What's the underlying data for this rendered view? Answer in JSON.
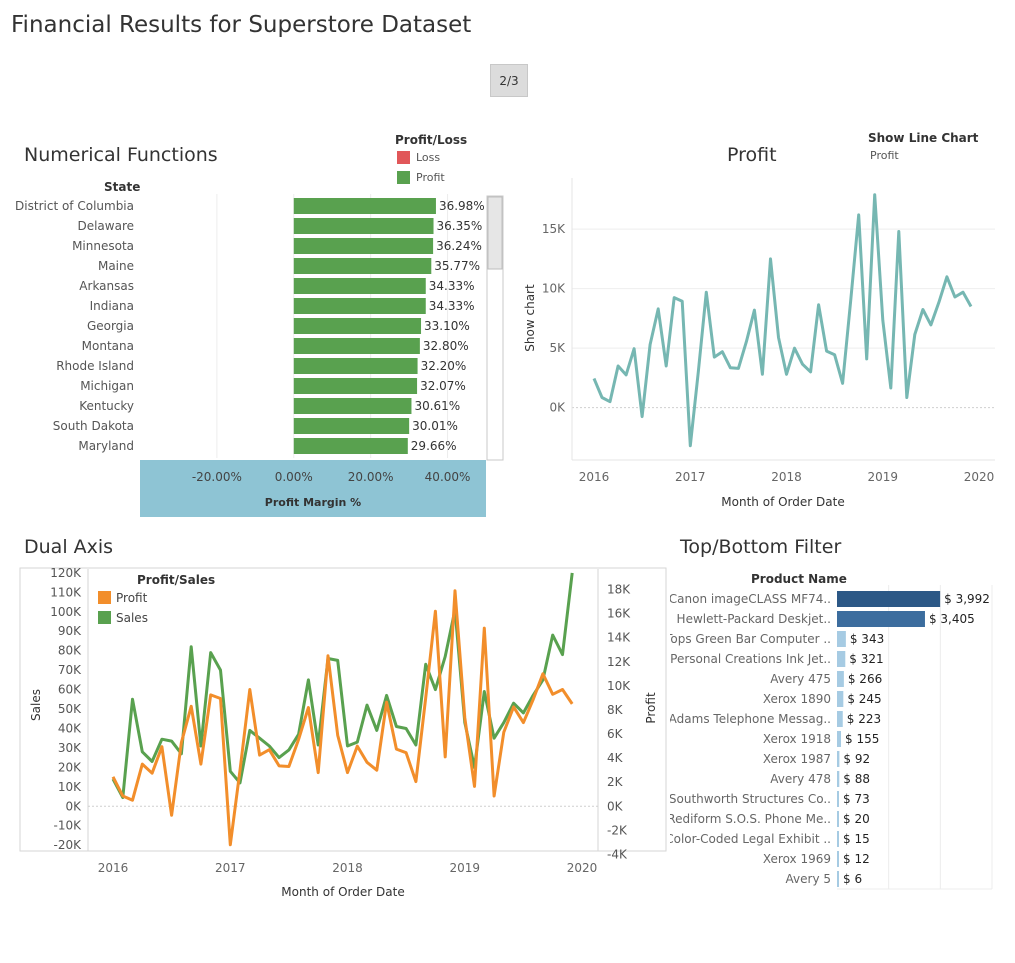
{
  "title": "Financial Results for Superstore Dataset",
  "page_indicator": "2/3",
  "numerical": {
    "title": "Numerical Functions",
    "legend_title": "Profit/Loss",
    "legend": [
      {
        "label": "Loss",
        "color": "#e15759"
      },
      {
        "label": "Profit",
        "color": "#59a14f"
      }
    ],
    "row_header": "State"
  },
  "profit_panel": {
    "title": "Profit",
    "param_label": "Show Line Chart",
    "param_value": "Profit"
  },
  "dual_panel": {
    "title": "Dual Axis",
    "legend_title": "Profit/Sales",
    "legend": [
      {
        "label": "Profit",
        "color": "#f28e2b"
      },
      {
        "label": "Sales",
        "color": "#59a14f"
      }
    ]
  },
  "topbottom_panel": {
    "title": "Top/Bottom Filter",
    "row_header": "Product Name"
  },
  "chart_data": [
    {
      "type": "bar",
      "orientation": "horizontal",
      "categories": [
        "District of Columbia",
        "Delaware",
        "Minnesota",
        "Maine",
        "Arkansas",
        "Indiana",
        "Georgia",
        "Montana",
        "Rhode Island",
        "Michigan",
        "Kentucky",
        "South Dakota",
        "Maryland"
      ],
      "values": [
        36.98,
        36.35,
        36.24,
        35.77,
        34.33,
        34.33,
        33.1,
        32.8,
        32.2,
        32.07,
        30.61,
        30.01,
        29.66
      ],
      "labels": [
        "36.98%",
        "36.35%",
        "36.24%",
        "35.77%",
        "34.33%",
        "34.33%",
        "33.10%",
        "32.80%",
        "32.20%",
        "32.07%",
        "30.61%",
        "30.01%",
        "29.66%"
      ],
      "xlabel": "Profit Margin %",
      "ylabel": "State",
      "xticks": [
        -20,
        0,
        20,
        40
      ],
      "xtick_labels": [
        "-20.00%",
        "0.00%",
        "20.00%",
        "40.00%"
      ],
      "xlim": [
        -40,
        50
      ],
      "color": "#59a14f"
    },
    {
      "type": "line",
      "title": "Profit",
      "xlabel": "Month of Order Date",
      "ylabel": "Show chart",
      "x": [
        "2016-01",
        "2016-02",
        "2016-03",
        "2016-04",
        "2016-05",
        "2016-06",
        "2016-07",
        "2016-08",
        "2016-09",
        "2016-10",
        "2016-11",
        "2016-12",
        "2017-01",
        "2017-02",
        "2017-03",
        "2017-04",
        "2017-05",
        "2017-06",
        "2017-07",
        "2017-08",
        "2017-09",
        "2017-10",
        "2017-11",
        "2017-12",
        "2018-01",
        "2018-02",
        "2018-03",
        "2018-04",
        "2018-05",
        "2018-06",
        "2018-07",
        "2018-08",
        "2018-09",
        "2018-10",
        "2018-11",
        "2018-12",
        "2019-01",
        "2019-02",
        "2019-03",
        "2019-04",
        "2019-05",
        "2019-06",
        "2019-07",
        "2019-08",
        "2019-09",
        "2019-10",
        "2019-11",
        "2019-12"
      ],
      "values": [
        2450,
        850,
        500,
        3500,
        2750,
        4950,
        -750,
        5300,
        8300,
        3500,
        9250,
        8950,
        -3200,
        3000,
        9700,
        4250,
        4700,
        3350,
        3300,
        5550,
        8200,
        2800,
        12500,
        5900,
        2800,
        5000,
        3650,
        3000,
        8650,
        4750,
        4450,
        2050,
        9000,
        16200,
        4100,
        17900,
        7350,
        1650,
        14800,
        850,
        6150,
        8250,
        6950,
        8850,
        11000,
        9300,
        9700,
        8500
      ],
      "yticks": [
        0,
        5000,
        10000,
        15000
      ],
      "ytick_labels": [
        "0K",
        "5K",
        "10K",
        "15K"
      ],
      "ylim": [
        -4400,
        19300
      ],
      "xticks": [
        "2016",
        "2017",
        "2018",
        "2019",
        "2020"
      ],
      "color": "#76b7b2"
    },
    {
      "type": "line",
      "dual_axis": true,
      "xlabel": "Month of Order Date",
      "ylabel_left": "Sales",
      "ylabel_right": "Profit",
      "x": [
        "2016-01",
        "2016-02",
        "2016-03",
        "2016-04",
        "2016-05",
        "2016-06",
        "2016-07",
        "2016-08",
        "2016-09",
        "2016-10",
        "2016-11",
        "2016-12",
        "2017-01",
        "2017-02",
        "2017-03",
        "2017-04",
        "2017-05",
        "2017-06",
        "2017-07",
        "2017-08",
        "2017-09",
        "2017-10",
        "2017-11",
        "2017-12",
        "2018-01",
        "2018-02",
        "2018-03",
        "2018-04",
        "2018-05",
        "2018-06",
        "2018-07",
        "2018-08",
        "2018-09",
        "2018-10",
        "2018-11",
        "2018-12",
        "2019-01",
        "2019-02",
        "2019-03",
        "2019-04",
        "2019-05",
        "2019-06",
        "2019-07",
        "2019-08",
        "2019-09",
        "2019-10",
        "2019-11",
        "2019-12"
      ],
      "series": [
        {
          "name": "Sales",
          "axis": "left",
          "color": "#59a14f",
          "values": [
            14000,
            4500,
            55000,
            28000,
            23000,
            34500,
            33500,
            27000,
            82000,
            31000,
            79000,
            70000,
            18000,
            12000,
            39000,
            35000,
            31000,
            25000,
            29000,
            37000,
            65000,
            31500,
            76000,
            75000,
            31000,
            33000,
            52000,
            39000,
            57000,
            41000,
            40000,
            31500,
            73000,
            60000,
            77000,
            101000,
            43000,
            20000,
            59000,
            35000,
            43000,
            53000,
            48000,
            57000,
            65000,
            88000,
            78000,
            120000
          ]
        },
        {
          "name": "Profit",
          "axis": "right",
          "color": "#f28e2b",
          "values": [
            2450,
            850,
            500,
            3500,
            2750,
            4950,
            -750,
            5300,
            8300,
            3500,
            9250,
            8950,
            -3200,
            3000,
            9700,
            4250,
            4700,
            3350,
            3300,
            5550,
            8200,
            2800,
            12500,
            5900,
            2800,
            5000,
            3650,
            3000,
            8650,
            4750,
            4450,
            2050,
            9000,
            16200,
            4100,
            17900,
            7350,
            1650,
            14800,
            850,
            6150,
            8250,
            6950,
            8850,
            11000,
            9300,
            9700,
            8500
          ]
        }
      ],
      "yticks_left": [
        -20000,
        -10000,
        0,
        10000,
        20000,
        30000,
        40000,
        50000,
        60000,
        70000,
        80000,
        90000,
        100000,
        110000,
        120000
      ],
      "ytick_labels_left": [
        "-20K",
        "-10K",
        "0K",
        "10K",
        "20K",
        "30K",
        "40K",
        "50K",
        "60K",
        "70K",
        "80K",
        "90K",
        "100K",
        "110K",
        "120K"
      ],
      "ylim_left": [
        -23000,
        122000
      ],
      "yticks_right": [
        -4000,
        -2000,
        0,
        2000,
        4000,
        6000,
        8000,
        10000,
        12000,
        14000,
        16000,
        18000
      ],
      "ytick_labels_right": [
        "-4K",
        "-2K",
        "0K",
        "2K",
        "4K",
        "6K",
        "8K",
        "10K",
        "12K",
        "14K",
        "16K",
        "18K"
      ],
      "xticks": [
        "2016",
        "2017",
        "2018",
        "2019",
        "2020"
      ]
    },
    {
      "type": "bar",
      "orientation": "horizontal",
      "ylabel": "Product Name",
      "categories": [
        "Canon imageCLASS MF74..",
        "Hewlett-Packard Deskjet..",
        "Tops Green Bar Computer ..",
        "Personal Creations Ink Jet..",
        "Avery 475",
        "Xerox 1890",
        "Adams Telephone Messag..",
        "Xerox 1918",
        "Xerox 1987",
        "Avery 478",
        "Southworth Structures Co..",
        "Rediform S.O.S. Phone Me..",
        "Color-Coded Legal Exhibit ..",
        "Xerox 1969",
        "Avery 5"
      ],
      "values": [
        3992,
        3405,
        343,
        321,
        266,
        245,
        223,
        155,
        92,
        88,
        73,
        20,
        15,
        12,
        6
      ],
      "labels": [
        "$ 3,992",
        "$ 3,405",
        "$ 343",
        "$ 321",
        "$ 266",
        "$ 245",
        "$ 223",
        "$ 155",
        "$ 92",
        "$ 88",
        "$ 73",
        "$ 20",
        "$ 15",
        "$ 12",
        "$ 6"
      ],
      "colors": [
        "#2c5886",
        "#3c6d9e",
        "#a6cbe3",
        "#a6cbe3",
        "#a6cbe3",
        "#a6cbe3",
        "#a6cbe3",
        "#a6cbe3",
        "#a6cbe3",
        "#a6cbe3",
        "#a6cbe3",
        "#a6cbe3",
        "#a6cbe3",
        "#a6cbe3",
        "#a6cbe3"
      ]
    }
  ]
}
